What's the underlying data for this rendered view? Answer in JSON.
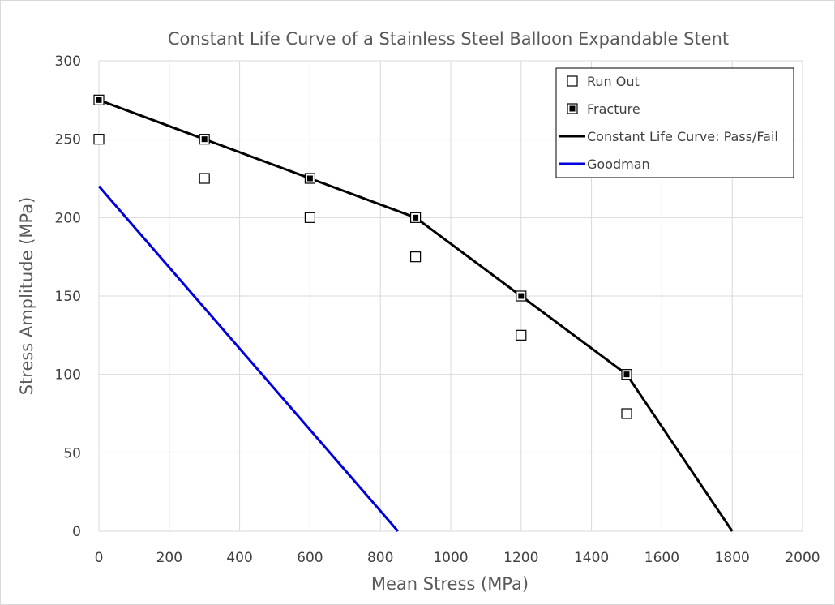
{
  "chart_data": {
    "type": "scatter",
    "title": "Constant Life Curve of a Stainless Steel Balloon Expandable Stent",
    "xlabel": "Mean Stress (MPa)",
    "ylabel": "Stress Amplitude (MPa)",
    "xlim": [
      0,
      2000
    ],
    "ylim": [
      0,
      300
    ],
    "xticks": [
      0,
      200,
      400,
      600,
      800,
      1000,
      1200,
      1400,
      1600,
      1800,
      2000
    ],
    "yticks": [
      0,
      50,
      100,
      150,
      200,
      250,
      300
    ],
    "grid": true,
    "legend_position": "top-right",
    "series": [
      {
        "name": "Run Out",
        "kind": "marker",
        "marker": "open-square",
        "color": "#000000",
        "points": [
          [
            0,
            250
          ],
          [
            300,
            225
          ],
          [
            600,
            200
          ],
          [
            900,
            175
          ],
          [
            1200,
            125
          ],
          [
            1500,
            75
          ]
        ]
      },
      {
        "name": "Fracture",
        "kind": "marker",
        "marker": "filled-square-in-open-square",
        "color": "#000000",
        "points": [
          [
            0,
            275
          ],
          [
            300,
            250
          ],
          [
            600,
            225
          ],
          [
            900,
            200
          ],
          [
            1200,
            150
          ],
          [
            1500,
            100
          ]
        ]
      },
      {
        "name": "Constant Life Curve: Pass/Fail",
        "kind": "line",
        "color": "#000000",
        "points": [
          [
            0,
            275
          ],
          [
            300,
            250
          ],
          [
            600,
            225
          ],
          [
            900,
            200
          ],
          [
            1200,
            150
          ],
          [
            1500,
            100
          ],
          [
            1800,
            0
          ]
        ]
      },
      {
        "name": "Goodman",
        "kind": "line",
        "color": "#0000dd",
        "points": [
          [
            0,
            220
          ],
          [
            850,
            0
          ]
        ]
      }
    ]
  }
}
